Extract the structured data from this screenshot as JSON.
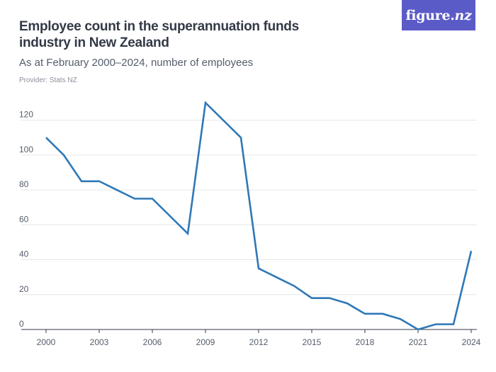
{
  "header": {
    "title": "Employee count in the superannuation funds industry in New Zealand",
    "subtitle": "As at February 2000–2024, number of employees",
    "provider": "Provider: Stats NZ",
    "logo_text": "figure.",
    "logo_text_nz": "nz"
  },
  "chart_data": {
    "type": "line",
    "title": "Employee count in the superannuation funds industry in New Zealand",
    "subtitle": "As at February 2000–2024, number of employees",
    "xlabel": "",
    "ylabel": "",
    "x": [
      2000,
      2001,
      2002,
      2003,
      2004,
      2005,
      2006,
      2007,
      2008,
      2009,
      2010,
      2011,
      2012,
      2013,
      2014,
      2015,
      2016,
      2017,
      2018,
      2019,
      2020,
      2021,
      2022,
      2023,
      2024
    ],
    "series": [
      {
        "values": [
          110,
          100,
          85,
          85,
          80,
          75,
          75,
          65,
          55,
          130,
          120,
          110,
          35,
          30,
          25,
          18,
          18,
          15,
          9,
          9,
          6,
          0,
          3,
          3,
          45
        ]
      }
    ],
    "xticks": [
      2000,
      2003,
      2006,
      2009,
      2012,
      2015,
      2018,
      2021,
      2024
    ],
    "yticks": [
      0,
      20,
      40,
      60,
      80,
      100,
      120
    ],
    "xlim": [
      2000,
      2024
    ],
    "ylim": [
      0,
      130
    ],
    "grid": "horizontal",
    "line_color": "#2e78b7",
    "grid_color": "#e6e6e6",
    "axis_color": "#333a47"
  },
  "colors": {
    "logo_bg": "#5b5bc8",
    "title": "#333a47"
  }
}
